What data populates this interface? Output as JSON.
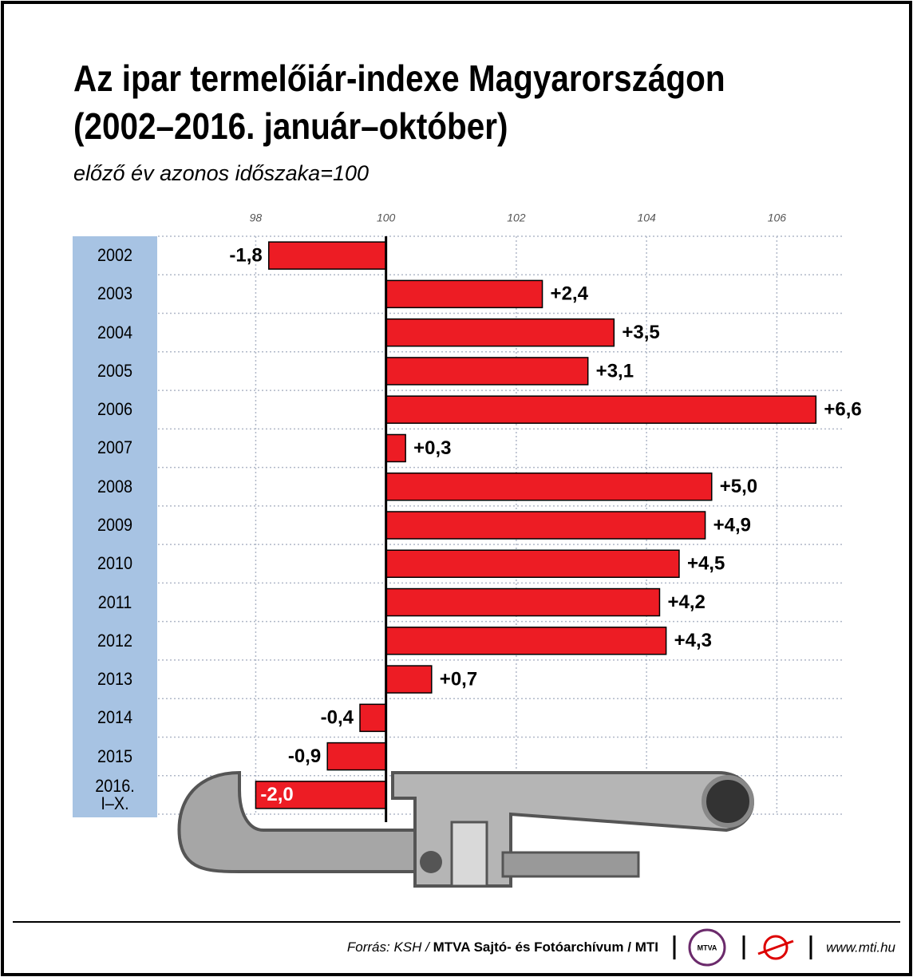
{
  "chart_data": {
    "type": "bar",
    "orientation": "horizontal",
    "title": "Az ipar termelőiár-indexe Magyarországon\n(2002–2016. január–október)",
    "subtitle": "előző év azonos időszaka=100",
    "categories": [
      "2002",
      "2003",
      "2004",
      "2005",
      "2006",
      "2007",
      "2008",
      "2009",
      "2010",
      "2011",
      "2012",
      "2013",
      "2014",
      "2015",
      "2016.\nI–X."
    ],
    "values": [
      98.2,
      102.4,
      103.5,
      103.1,
      106.6,
      100.3,
      105.0,
      104.9,
      104.5,
      104.2,
      104.3,
      100.7,
      99.6,
      99.1,
      98.0
    ],
    "value_labels": [
      "-1,8",
      "+2,4",
      "+3,5",
      "+3,1",
      "+6,6",
      "+0,3",
      "+5,0",
      "+4,9",
      "+4,5",
      "+4,2",
      "+4,3",
      "+0,7",
      "-0,4",
      "-0,9",
      "-2,0"
    ],
    "baseline": 100,
    "color": "#ed1c24",
    "xlim": [
      96.5,
      107
    ],
    "xticks": [
      98,
      100,
      102,
      104,
      106
    ],
    "grid": true,
    "source": "Forrás: KSH / ",
    "source_bold": "MTVA Sajtó- és Fotóarchívum / MTI",
    "logo": "MTVA",
    "website": "www.mti.hu"
  }
}
